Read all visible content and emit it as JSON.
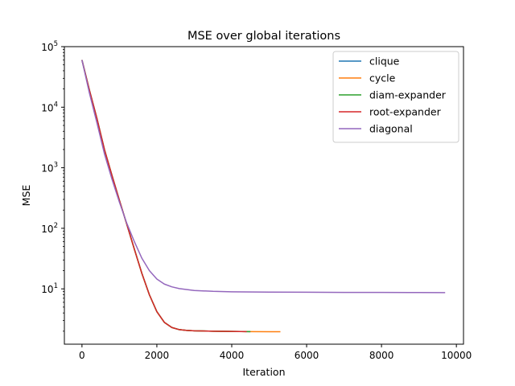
{
  "chart_data": {
    "type": "line",
    "title": "MSE over global iterations",
    "xlabel": "Iteration",
    "ylabel": "MSE",
    "yscale": "log",
    "xlim": [
      -470,
      10190
    ],
    "ylim": [
      1.22,
      100000
    ],
    "grid": false,
    "legend_position": "top-right",
    "x_ticks": [
      {
        "value": 0,
        "label": "0"
      },
      {
        "value": 2000,
        "label": "2000"
      },
      {
        "value": 4000,
        "label": "4000"
      },
      {
        "value": 6000,
        "label": "6000"
      },
      {
        "value": 8000,
        "label": "8000"
      },
      {
        "value": 10000,
        "label": "10000"
      }
    ],
    "y_ticks": [
      {
        "value": 10,
        "base": "10",
        "exp": "1"
      },
      {
        "value": 100,
        "base": "10",
        "exp": "2"
      },
      {
        "value": 1000,
        "base": "10",
        "exp": "3"
      },
      {
        "value": 10000,
        "base": "10",
        "exp": "4"
      },
      {
        "value": 100000,
        "base": "10",
        "exp": "5"
      }
    ],
    "series": [
      {
        "name": "clique",
        "color": "#1f77b4",
        "x": [
          0,
          200,
          400,
          600,
          800,
          1000,
          1200,
          1400,
          1600,
          1800,
          2000,
          2200,
          2400,
          2600,
          2800,
          3000,
          3500,
          4000,
          4500
        ],
        "y": [
          60000,
          19000,
          6500,
          2000,
          750,
          290,
          115,
          45,
          18,
          8,
          4.2,
          2.8,
          2.3,
          2.12,
          2.06,
          2.03,
          2.0,
          1.98,
          1.97
        ]
      },
      {
        "name": "cycle",
        "color": "#ff7f0e",
        "x": [
          0,
          200,
          400,
          600,
          800,
          1000,
          1200,
          1400,
          1600,
          1800,
          2000,
          2200,
          2400,
          2600,
          2800,
          3000,
          3500,
          4000,
          4500,
          5000,
          5300
        ],
        "y": [
          60000,
          19000,
          6500,
          2000,
          750,
          290,
          115,
          45,
          18,
          8,
          4.2,
          2.8,
          2.3,
          2.12,
          2.06,
          2.03,
          2.0,
          1.98,
          1.97,
          1.96,
          1.96
        ]
      },
      {
        "name": "diam-expander",
        "color": "#2ca02c",
        "x": [
          0,
          200,
          400,
          600,
          800,
          1000,
          1200,
          1400,
          1600,
          1800,
          2000,
          2200,
          2400,
          2600,
          2800,
          3000,
          3500,
          4000,
          4500
        ],
        "y": [
          60000,
          19000,
          6500,
          2000,
          750,
          290,
          115,
          45,
          18,
          8,
          4.2,
          2.8,
          2.3,
          2.12,
          2.06,
          2.03,
          2.0,
          1.98,
          1.97
        ]
      },
      {
        "name": "root-expander",
        "color": "#d62728",
        "x": [
          0,
          200,
          400,
          600,
          800,
          1000,
          1200,
          1400,
          1600,
          1800,
          2000,
          2200,
          2400,
          2600,
          2800,
          3000,
          3500,
          4000,
          4400
        ],
        "y": [
          60000,
          19000,
          6500,
          2000,
          750,
          290,
          115,
          45,
          18,
          8,
          4.2,
          2.8,
          2.3,
          2.12,
          2.06,
          2.03,
          2.0,
          1.98,
          1.97
        ]
      },
      {
        "name": "diagonal",
        "color": "#9467bd",
        "x": [
          0,
          200,
          400,
          600,
          800,
          1000,
          1200,
          1400,
          1600,
          1800,
          2000,
          2200,
          2400,
          2600,
          3000,
          3500,
          4000,
          5000,
          6000,
          7000,
          8000,
          9000,
          9700
        ],
        "y": [
          60000,
          17000,
          5500,
          1700,
          650,
          270,
          120,
          60,
          32,
          20,
          14.5,
          12,
          10.8,
          10.1,
          9.4,
          9.1,
          8.95,
          8.85,
          8.8,
          8.75,
          8.72,
          8.7,
          8.68
        ]
      }
    ]
  }
}
